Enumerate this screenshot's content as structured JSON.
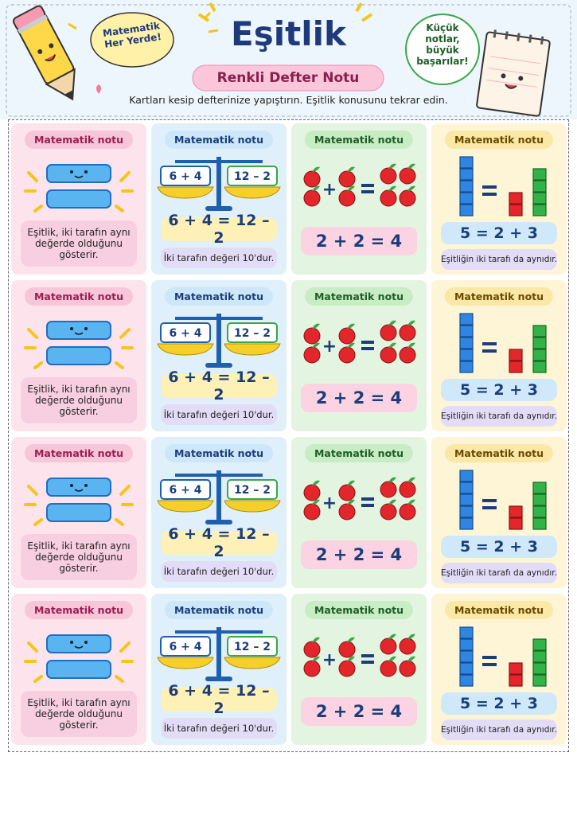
{
  "header": {
    "title": "Eşitlik",
    "subtitle": "Renkli Defter Notu",
    "left_bubble": "Matematik Her Yerde!",
    "right_bubble": "Küçük notlar, büyük başarılar!",
    "instruction": "Kartları kesip defterinize yapıştırın. Eşitlik konusunu tekrar edin."
  },
  "rows": [
    {
      "pink": {
        "badge": "Matematik notu",
        "text": "Eşitlik, iki tarafın aynı değerde olduğunu gösterir."
      },
      "blue": {
        "badge": "Matematik notu",
        "left": "6 + 4",
        "right": "12 – 2",
        "equation": "6 + 4 = 12 – 2",
        "text": "İki tarafın değeri 10'dur."
      },
      "green": {
        "badge": "Matematik notu",
        "equation": "2 + 2 = 4"
      },
      "yellow": {
        "badge": "Matematik notu",
        "equation": "5 = 2 + 3",
        "text": "Eşitliğin iki tarafı da aynıdır."
      }
    },
    {
      "pink": {
        "badge": "Matematik notu",
        "text": "Eşitlik, iki tarafın aynı değerde olduğunu gösterir."
      },
      "blue": {
        "badge": "Matematik notu",
        "left": "6 + 4",
        "right": "12 – 2",
        "equation": "6 + 4 = 12 – 2",
        "text": "İki tarafın değeri 10'dur."
      },
      "green": {
        "badge": "Matematik notu",
        "equation": "2 + 2 = 4"
      },
      "yellow": {
        "badge": "Matematik notu",
        "equation": "5 = 2 + 3",
        "text": "Eşitliğin iki tarafı da aynıdır."
      }
    },
    {
      "pink": {
        "badge": "Matematik notu",
        "text": "Eşitlik, iki tarafın aynı değerde olduğunu gösterir."
      },
      "blue": {
        "badge": "Matematik notu",
        "left": "6 + 4",
        "right": "12 – 2",
        "equation": "6 + 4 = 12 – 2",
        "text": "İki tarafın değeri 10'dur."
      },
      "green": {
        "badge": "Matematik notu",
        "equation": "2 + 2 = 4"
      },
      "yellow": {
        "badge": "Matematik notu",
        "equation": "5 = 2 + 3",
        "text": "Eşitliğin iki tarafı da aynıdır."
      }
    },
    {
      "pink": {
        "badge": "Matematik notu",
        "text": "Eşitlik, iki tarafın aynı değerde olduğunu gösterir."
      },
      "blue": {
        "badge": "Matematik notu",
        "left": "6 + 4",
        "right": "12 – 2",
        "equation": "6 + 4 = 12 – 2",
        "text": "İki tarafın değeri 10'dur."
      },
      "green": {
        "badge": "Matematik notu",
        "equation": "2 + 2 = 4"
      },
      "yellow": {
        "badge": "Matematik notu",
        "equation": "5 = 2 + 3",
        "text": "Eşitliğin iki tarafı da aynıdır."
      }
    }
  ]
}
